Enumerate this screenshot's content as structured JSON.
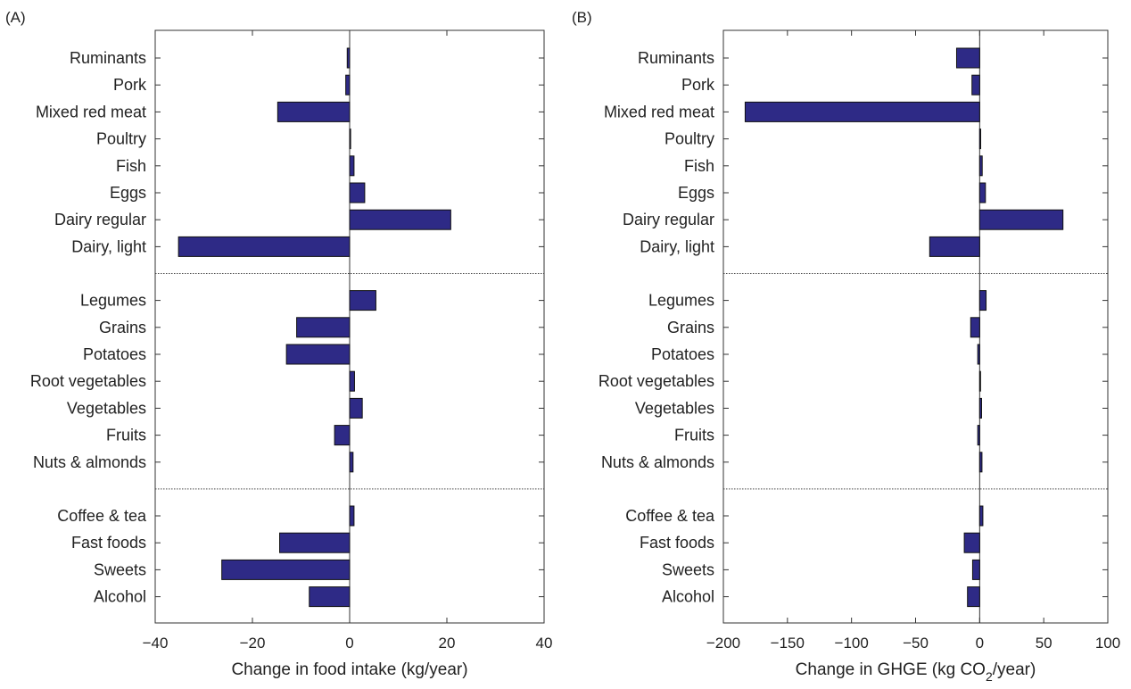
{
  "chart_data": [
    {
      "type": "bar",
      "orientation": "horizontal",
      "panel": "(A)",
      "title": "",
      "xlabel": "Change in food intake (kg/year)",
      "ylabel": "",
      "xlim": [
        -40,
        40
      ],
      "xticks": [
        "−40",
        "−20",
        "0",
        "20",
        "40"
      ],
      "tick_values": [
        -40,
        -20,
        0,
        20,
        40
      ],
      "grid": false,
      "bar_color": "#2e2a86",
      "group_separators": "dotted lines between food groups",
      "categories": [
        "Ruminants",
        "Pork",
        "Mixed red meat",
        "Poultry",
        "Fish",
        "Eggs",
        "Dairy regular",
        "Dairy, light",
        "Legumes",
        "Grains",
        "Potatoes",
        "Root vegetables",
        "Vegetables",
        "Fruits",
        "Nuts & almonds",
        "Coffee & tea",
        "Fast foods",
        "Sweets",
        "Alcohol"
      ],
      "groups": [
        [
          0,
          7
        ],
        [
          8,
          14
        ],
        [
          15,
          18
        ]
      ],
      "values": [
        -0.5,
        -0.8,
        -14.8,
        0.2,
        0.9,
        3.1,
        20.8,
        -35.2,
        5.4,
        -10.9,
        -13.0,
        1.0,
        2.6,
        -3.1,
        0.7,
        0.9,
        -14.4,
        -26.3,
        -8.3
      ]
    },
    {
      "type": "bar",
      "orientation": "horizontal",
      "panel": "(B)",
      "title": "",
      "xlabel_main": "Change in GHGE (kg CO",
      "xlabel_sub": "2",
      "xlabel_end": "/year)",
      "ylabel": "",
      "xlim": [
        -200,
        100
      ],
      "xticks": [
        "−200",
        "−150",
        "−100",
        "−50",
        "0",
        "50",
        "100"
      ],
      "tick_values": [
        -200,
        -150,
        -100,
        -50,
        0,
        50,
        100
      ],
      "grid": false,
      "bar_color": "#2e2a86",
      "group_separators": "dotted lines between food groups",
      "categories": [
        "Ruminants",
        "Pork",
        "Mixed red meat",
        "Poultry",
        "Fish",
        "Eggs",
        "Dairy regular",
        "Dairy, light",
        "Legumes",
        "Grains",
        "Potatoes",
        "Root vegetables",
        "Vegetables",
        "Fruits",
        "Nuts & almonds",
        "Coffee & tea",
        "Fast foods",
        "Sweets",
        "Alcohol"
      ],
      "groups": [
        [
          0,
          7
        ],
        [
          8,
          14
        ],
        [
          15,
          18
        ]
      ],
      "values": [
        -18,
        -6,
        -183,
        0.8,
        2,
        4.5,
        65,
        -39,
        5,
        -7,
        -1.5,
        0.3,
        1.5,
        -1.5,
        1.8,
        2.5,
        -12,
        -5.5,
        -9.5
      ]
    }
  ]
}
